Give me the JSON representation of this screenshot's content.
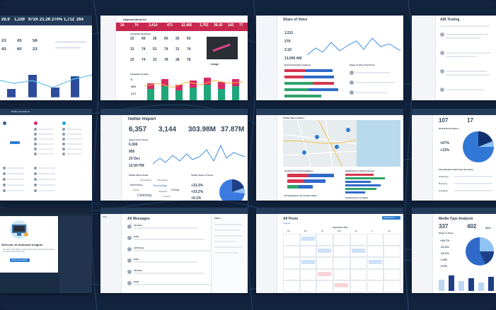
{
  "p1": {
    "stats": [
      "26.9",
      "1,109",
      "971K",
      "21.2K",
      "274%",
      "1,712",
      "264"
    ],
    "numbers": [
      "23",
      "45",
      "58",
      "43",
      "60",
      "23"
    ]
  },
  "p2": {
    "title": "digmanindustries",
    "stats": [
      "34",
      "74",
      "3,414",
      "471",
      "12,465",
      "1,762",
      "36.43",
      "143",
      "77"
    ],
    "section1": "Instagram Summary",
    "section2": "Instagram Activity",
    "grid": [
      "22",
      "60",
      "26",
      "60",
      "26",
      "60",
      "31",
      "74",
      "51",
      "74",
      "31",
      "74",
      "22",
      "74",
      "31",
      "78",
      "28",
      "78"
    ],
    "axis": [
      "9",
      "305",
      "473"
    ],
    "image_label": "Image"
  },
  "p3": {
    "title": "Share of Voice",
    "stats": [
      "1,511",
      "27K",
      "2.1K",
      "13,000 AM"
    ],
    "sub1": "Brand Sentiment Analysis",
    "sub2": "Share of Voice Top Posts"
  },
  "p4": {
    "title": "A/B Testing"
  },
  "p5": {
    "title": "Profile Connections"
  },
  "p6": {
    "title": "Twitter Report",
    "stats": [
      "6,357",
      "3,144",
      "303.98M",
      "37.87M"
    ],
    "chart_title": "Impressions Trend",
    "left_vals": [
      "6,366",
      "950",
      "23 Dec",
      "12:00 PM"
    ],
    "box1": "Twitter Word Cloud",
    "box2": "Twitter Share of Voice",
    "words": [
      "Accessibility",
      "Marketing",
      "Technology",
      "Design",
      "Listening",
      "Analytics",
      "Social",
      "Content",
      "Scheduling"
    ],
    "pcts": [
      "+33.3%",
      "+33.2%",
      "+6.1%"
    ]
  },
  "p7": {
    "title": "Twitter Map Analytics",
    "sub1": "Sentiment by Demographics",
    "sub2": "Sentiment by Volume Source",
    "sub3": "Demographics By Volume Share",
    "sub4": "Sentiment by Location"
  },
  "p8": {
    "stats": [
      "107",
      "17"
    ],
    "title": "Global Performance",
    "pcts": [
      "+67%",
      "+13%"
    ],
    "sub": "Classification Data Type Summary",
    "rows": [
      "Streaming",
      "Browsing",
      "Engaging"
    ]
  },
  "p9": {
    "title": "Welcome to Hootsuite Insights",
    "body": "Get started with Insights. Search and monitor your brand and industry to uncover trends that matter.",
    "button": "Create a new search"
  },
  "p10": {
    "title": "All Messages",
    "header": "Inbox",
    "names": [
      "Jasmine",
      "Bella",
      "Jeff Stone",
      "Bella",
      "Jasmine",
      "Bella"
    ],
    "side_title": "Filters"
  },
  "p11": {
    "title": "All Posts",
    "tab": "Calendar",
    "button": "Schedule Post",
    "month": "September 2019",
    "days": [
      "Sun",
      "Mon",
      "Tue",
      "Wed",
      "Thu",
      "Fri",
      "Sat"
    ]
  },
  "p12": {
    "title": "Media Type Analysis",
    "stats": [
      "337",
      "402",
      "36%"
    ],
    "pcts": [
      "+33.7%",
      "-16.3%",
      "-14.1%",
      "-1.8%",
      "-3.3%"
    ],
    "sub": "Share of Voice"
  }
}
